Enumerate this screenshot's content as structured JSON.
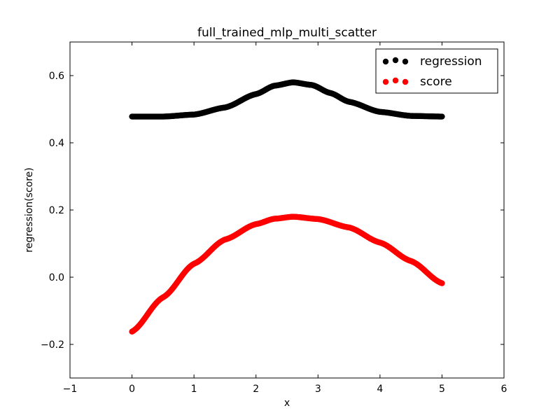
{
  "chart_data": {
    "type": "scatter",
    "title": "full_trained_mlp_multi_scatter",
    "xlabel": "x",
    "ylabel": "regression(score)",
    "xlim": [
      -1,
      6
    ],
    "ylim": [
      -0.3,
      0.7
    ],
    "xticks": [
      -1,
      0,
      1,
      2,
      3,
      4,
      5,
      6
    ],
    "yticks": [
      -0.2,
      0.0,
      0.2,
      0.4,
      0.6
    ],
    "xtick_labels": [
      "−1",
      "0",
      "1",
      "2",
      "3",
      "4",
      "5",
      "6"
    ],
    "ytick_labels": [
      "−0.2",
      "0.0",
      "0.2",
      "0.4",
      "0.6"
    ],
    "grid": false,
    "legend_position": "top-right",
    "series": [
      {
        "name": "regression",
        "color": "#000000",
        "x": [
          0.0,
          0.5,
          1.0,
          1.5,
          2.0,
          2.3,
          2.6,
          2.9,
          3.2,
          3.5,
          4.0,
          4.5,
          5.0
        ],
        "y": [
          0.478,
          0.478,
          0.484,
          0.505,
          0.545,
          0.57,
          0.58,
          0.572,
          0.548,
          0.522,
          0.492,
          0.48,
          0.478
        ]
      },
      {
        "name": "score",
        "color": "#ff0000",
        "x": [
          0.0,
          0.5,
          1.0,
          1.5,
          2.0,
          2.3,
          2.6,
          3.0,
          3.5,
          4.0,
          4.5,
          5.0
        ],
        "y": [
          -0.162,
          -0.06,
          0.04,
          0.112,
          0.158,
          0.174,
          0.18,
          0.173,
          0.148,
          0.103,
          0.048,
          -0.018
        ]
      }
    ]
  }
}
